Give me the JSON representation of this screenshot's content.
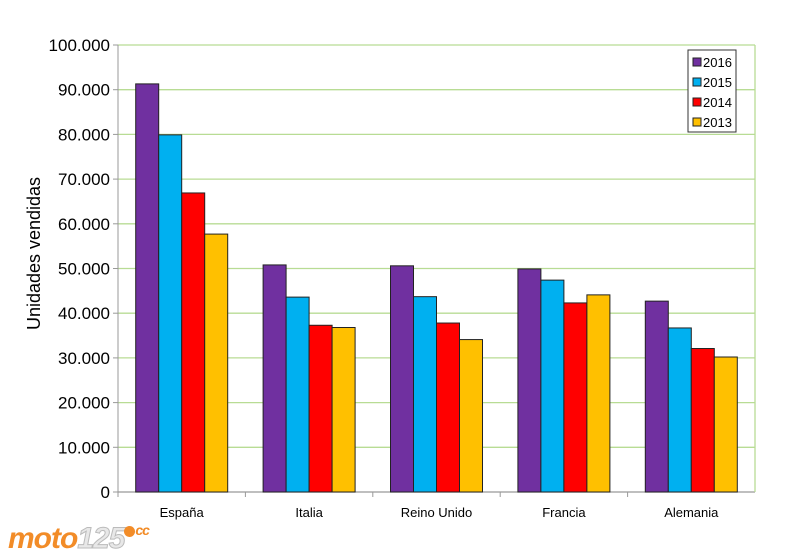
{
  "chart_data": {
    "type": "bar",
    "title": "",
    "xlabel": "",
    "ylabel": "Unidades vendidas",
    "ylim": [
      0,
      100000
    ],
    "yticks": [
      0,
      10000,
      20000,
      30000,
      40000,
      50000,
      60000,
      70000,
      80000,
      90000,
      100000
    ],
    "ytick_labels": [
      "0",
      "10.000",
      "20.000",
      "30.000",
      "40.000",
      "50.000",
      "60.000",
      "70.000",
      "80.000",
      "90.000",
      "100.000"
    ],
    "categories": [
      "España",
      "Italia",
      "Reino Unido",
      "Francia",
      "Alemania"
    ],
    "series": [
      {
        "name": "2016",
        "color": "#7030a0",
        "values": [
          91300,
          50800,
          50600,
          49900,
          42700
        ]
      },
      {
        "name": "2015",
        "color": "#00b0f0",
        "values": [
          79900,
          43600,
          43700,
          47400,
          36700
        ]
      },
      {
        "name": "2014",
        "color": "#ff0000",
        "values": [
          66900,
          37300,
          37800,
          42300,
          32100
        ]
      },
      {
        "name": "2013",
        "color": "#ffc000",
        "values": [
          57700,
          36800,
          34100,
          44100,
          30200
        ]
      }
    ],
    "grid": true,
    "grid_color": "#b8dc94",
    "legend_position": "top-right"
  },
  "logo": {
    "text": "moto",
    "num": "125",
    "suffix": "cc"
  }
}
